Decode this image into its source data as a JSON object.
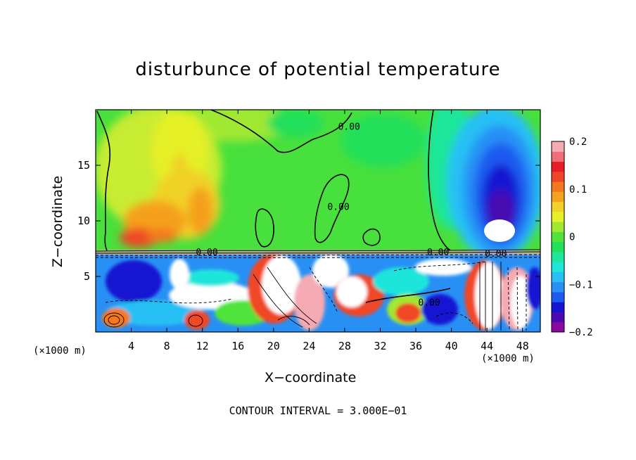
{
  "chart_data": {
    "type": "heatmap",
    "title": "disturbunce of potential temperature",
    "xlabel": "X−coordinate",
    "ylabel": "Z−coordinate",
    "x_unit_left": "(×1000 m)",
    "x_unit_right": "(×1000 m)",
    "footer": "CONTOUR INTERVAL = 3.000E−01",
    "xlim": [
      0,
      50
    ],
    "ylim": [
      0,
      20
    ],
    "x_ticks": [
      4,
      8,
      12,
      16,
      20,
      24,
      28,
      32,
      36,
      40,
      44,
      48
    ],
    "y_ticks": [
      5,
      10,
      15
    ],
    "colorbar": {
      "min": -0.2,
      "max": 0.2,
      "tick_values": [
        0.2,
        0.1,
        0,
        -0.1,
        -0.2
      ],
      "tick_labels": [
        "0.2",
        "0.1",
        "0",
        "−0.1",
        "−0.2"
      ],
      "colors": [
        "#8a0aa0",
        "#4a0ab0",
        "#1414d2",
        "#1e5af0",
        "#2890f5",
        "#28c0f5",
        "#1ee6dc",
        "#1ee69a",
        "#22e05a",
        "#50e43a",
        "#a0e832",
        "#e6f028",
        "#f0d228",
        "#f5a01e",
        "#f5781e",
        "#f04628",
        "#e61e28",
        "#f06e78",
        "#f5aab4"
      ]
    },
    "contour_labels": [
      {
        "text": "0.00",
        "x": 28.5,
        "z": 18.5
      },
      {
        "text": "0.00",
        "x": 27.3,
        "z": 11.3
      },
      {
        "text": "0.00",
        "x": 12.5,
        "z": 7.2
      },
      {
        "text": "0.00",
        "x": 38.5,
        "z": 7.2
      },
      {
        "text": "0.00",
        "x": 45.0,
        "z": 7.1
      },
      {
        "text": "0.00",
        "x": 37.5,
        "z": 2.7
      }
    ]
  }
}
